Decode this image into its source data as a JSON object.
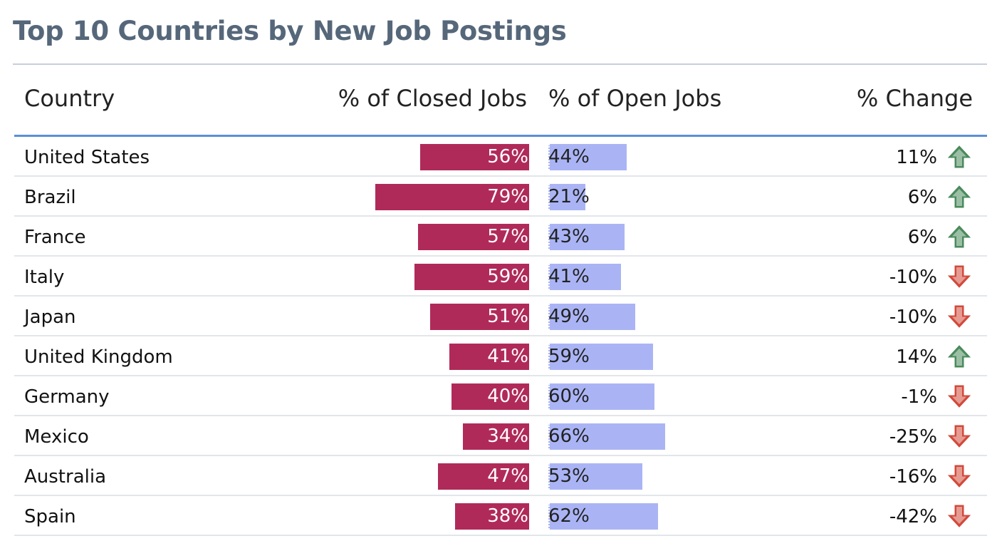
{
  "page": {
    "title": "Top 10 Countries by New Job Postings"
  },
  "columns": {
    "country": "Country",
    "closed": "% of Closed Jobs",
    "open": "% of Open Jobs",
    "change": "% Change"
  },
  "colors": {
    "closed_bar": "#b02a59",
    "open_bar": "#aab4f5",
    "up_arrow": "#4a8a5c",
    "down_arrow": "#d2493a",
    "title": "#56677a",
    "header_rule": "#5b8fd6"
  },
  "chart_data": {
    "type": "table",
    "title": "Top 10 Countries by New Job Postings",
    "columns": [
      "Country",
      "% of Closed Jobs",
      "% of Open Jobs",
      "% Change"
    ],
    "rows": [
      {
        "country": "United States",
        "closed": 56,
        "open": 44,
        "change": 11,
        "closed_label": "56%",
        "open_label": "44%",
        "change_label": "11%",
        "direction": "up"
      },
      {
        "country": "Brazil",
        "closed": 79,
        "open": 21,
        "change": 6,
        "closed_label": "79%",
        "open_label": "21%",
        "change_label": "6%",
        "direction": "up"
      },
      {
        "country": "France",
        "closed": 57,
        "open": 43,
        "change": 6,
        "closed_label": "57%",
        "open_label": "43%",
        "change_label": "6%",
        "direction": "up"
      },
      {
        "country": "Italy",
        "closed": 59,
        "open": 41,
        "change": -10,
        "closed_label": "59%",
        "open_label": "41%",
        "change_label": "-10%",
        "direction": "down"
      },
      {
        "country": "Japan",
        "closed": 51,
        "open": 49,
        "change": -10,
        "closed_label": "51%",
        "open_label": "49%",
        "change_label": "-10%",
        "direction": "down"
      },
      {
        "country": "United Kingdom",
        "closed": 41,
        "open": 59,
        "change": 14,
        "closed_label": "41%",
        "open_label": "59%",
        "change_label": "14%",
        "direction": "up"
      },
      {
        "country": "Germany",
        "closed": 40,
        "open": 60,
        "change": -1,
        "closed_label": "40%",
        "open_label": "60%",
        "change_label": "-1%",
        "direction": "down"
      },
      {
        "country": "Mexico",
        "closed": 34,
        "open": 66,
        "change": -25,
        "closed_label": "34%",
        "open_label": "66%",
        "change_label": "-25%",
        "direction": "down"
      },
      {
        "country": "Australia",
        "closed": 47,
        "open": 53,
        "change": -16,
        "closed_label": "47%",
        "open_label": "53%",
        "change_label": "-16%",
        "direction": "down"
      },
      {
        "country": "Spain",
        "closed": 38,
        "open": 62,
        "change": -42,
        "closed_label": "38%",
        "open_label": "62%",
        "change_label": "-42%",
        "direction": "down"
      }
    ]
  }
}
